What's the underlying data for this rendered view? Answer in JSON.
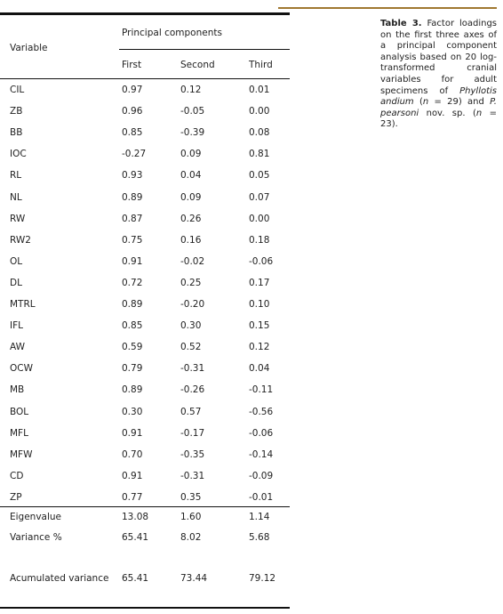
{
  "caption": {
    "label": "Table 3.",
    "text_1": " Factor loadings on the first three axes of a principal component analysis based on 20 log-transformed cranial variables for adult specimens of ",
    "species_1": "Phyllotis andium",
    "text_2": " (",
    "n_1": "n",
    "text_3": " = 29) and ",
    "species_2": "P. pearsoni",
    "text_4": " nov. sp. (",
    "n_2": "n",
    "text_5": " = 23)."
  },
  "table": {
    "variable_header": "Variable",
    "group_header": "Principal components",
    "columns": [
      "First",
      "Second",
      "Third"
    ],
    "rows": [
      {
        "var": "CIL",
        "values": [
          "0.97",
          "0.12",
          "0.01"
        ]
      },
      {
        "var": "ZB",
        "values": [
          "0.96",
          "-0.05",
          "0.00"
        ]
      },
      {
        "var": "BB",
        "values": [
          "0.85",
          "-0.39",
          "0.08"
        ]
      },
      {
        "var": "IOC",
        "values": [
          "-0.27",
          "0.09",
          "0.81"
        ]
      },
      {
        "var": "RL",
        "values": [
          "0.93",
          "0.04",
          "0.05"
        ]
      },
      {
        "var": "NL",
        "values": [
          "0.89",
          "0.09",
          "0.07"
        ]
      },
      {
        "var": "RW",
        "values": [
          "0.87",
          "0.26",
          "0.00"
        ]
      },
      {
        "var": "RW2",
        "values": [
          "0.75",
          "0.16",
          "0.18"
        ]
      },
      {
        "var": "OL",
        "values": [
          "0.91",
          "-0.02",
          "-0.06"
        ]
      },
      {
        "var": "DL",
        "values": [
          "0.72",
          "0.25",
          "0.17"
        ]
      },
      {
        "var": "MTRL",
        "values": [
          "0.89",
          "-0.20",
          "0.10"
        ]
      },
      {
        "var": "IFL",
        "values": [
          "0.85",
          "0.30",
          "0.15"
        ]
      },
      {
        "var": "AW",
        "values": [
          "0.59",
          "0.52",
          "0.12"
        ]
      },
      {
        "var": "OCW",
        "values": [
          "0.79",
          "-0.31",
          "0.04"
        ]
      },
      {
        "var": "MB",
        "values": [
          "0.89",
          "-0.26",
          "-0.11"
        ]
      },
      {
        "var": "BOL",
        "values": [
          "0.30",
          "0.57",
          "-0.56"
        ]
      },
      {
        "var": "MFL",
        "values": [
          "0.91",
          "-0.17",
          "-0.06"
        ]
      },
      {
        "var": "MFW",
        "values": [
          "0.70",
          "-0.35",
          "-0.14"
        ]
      },
      {
        "var": "CD",
        "values": [
          "0.91",
          "-0.31",
          "-0.09"
        ]
      },
      {
        "var": "ZP",
        "values": [
          "0.77",
          "0.35",
          "-0.01"
        ]
      }
    ],
    "eigenvalue": {
      "label": "Eigenvalue",
      "values": [
        "13.08",
        "1.60",
        "1.14"
      ]
    },
    "variance": {
      "label": "Variance %",
      "values": [
        "65.41",
        "8.02",
        "5.68"
      ]
    },
    "accumulated": {
      "label": "Acumulated variance",
      "values": [
        "65.41",
        "73.44",
        "79.12"
      ]
    }
  }
}
